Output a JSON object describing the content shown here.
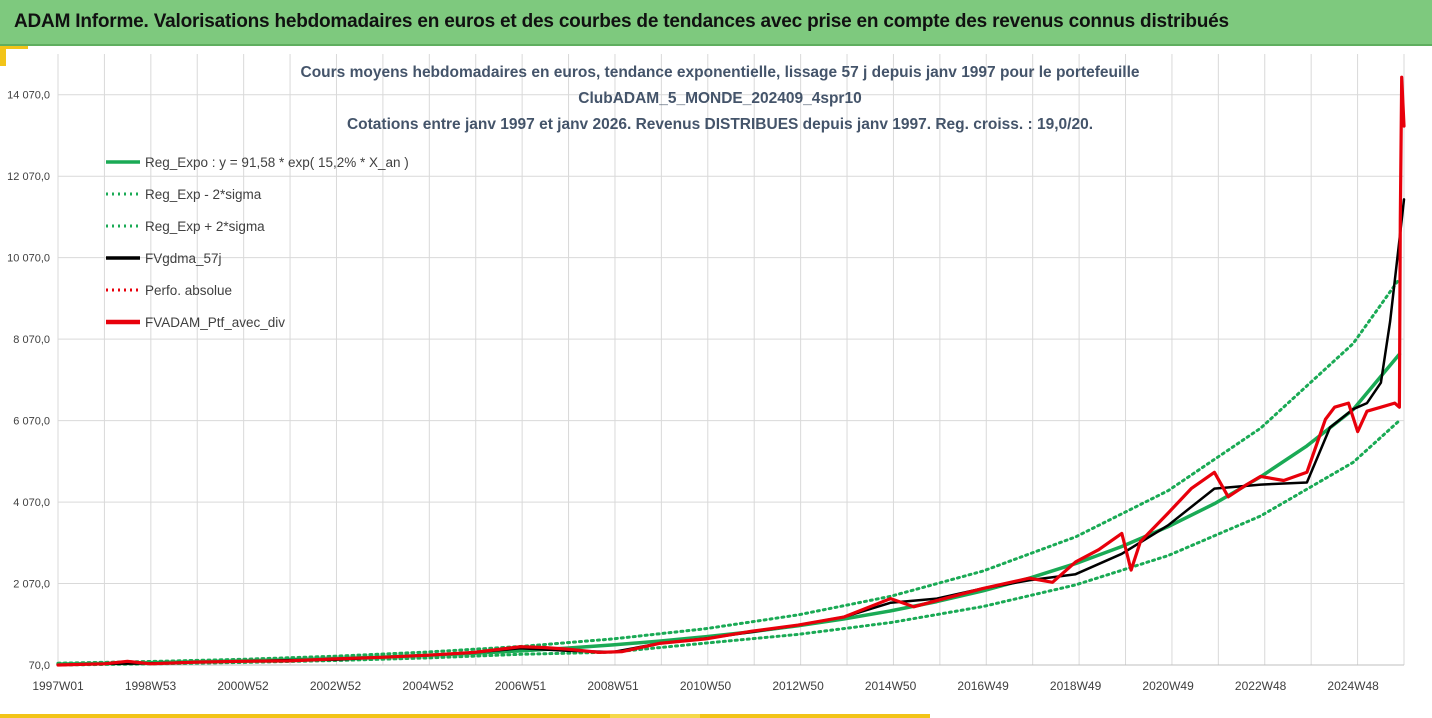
{
  "header": {
    "title": "ADAM Informe. Valorisations hebdomadaires en euros et des courbes de tendances avec prise en compte des revenus connus distribués"
  },
  "colors": {
    "header_bg": "#7ec97e",
    "trend": "#1aaa55",
    "sma": "#000000",
    "perf": "#e8000b",
    "accent": "#f2c418",
    "grid": "#d9d9d9"
  },
  "chart_data": {
    "type": "line",
    "title": [
      "Cours moyens hebdomadaires  en euros, tendance exponentielle, lissage 57 j depuis janv 1997 pour le portefeuille",
      "ClubADAM_5_MONDE_202409_4spr10",
      "Cotations entre janv 1997 et janv 2026. Revenus DISTRIBUES depuis janv 1997. Reg. croiss. : 19,0/20."
    ],
    "xlabel": "",
    "ylabel": "",
    "xlim": [
      1997.0,
      2026.1
    ],
    "ylim": [
      70,
      15070
    ],
    "yticks": [
      70,
      2070,
      4070,
      6070,
      8070,
      10070,
      12070,
      14070
    ],
    "ytick_labels": [
      "70,0",
      "2 070,0",
      "4 070,0",
      "6 070,0",
      "8 070,0",
      "10 070,0",
      "12 070,0",
      "14 070,0"
    ],
    "xtick_labels": [
      "1997W01",
      "1998W53",
      "2000W52",
      "2002W52",
      "2004W52",
      "2006W51",
      "2008W51",
      "2010W50",
      "2012W50",
      "2014W50",
      "2016W49",
      "2018W49",
      "2020W49",
      "2022W48",
      "2024W48"
    ],
    "xtick_years": [
      1997.0,
      1999.0,
      2001.0,
      2003.0,
      2005.0,
      2007.0,
      2009.0,
      2011.0,
      2013.0,
      2015.0,
      2017.0,
      2019.0,
      2021.0,
      2023.0,
      2025.0
    ],
    "legend": [
      {
        "label": "Reg_Expo : y = 91,58 * exp( 15,2% *  X_an )",
        "style": "solid-green"
      },
      {
        "label": "Reg_Exp - 2*sigma",
        "style": "dotted-green"
      },
      {
        "label": "Reg_Exp + 2*sigma",
        "style": "dotted-green"
      },
      {
        "label": "FVgdma_57j",
        "style": "solid-black"
      },
      {
        "label": "Perfo. absolue",
        "style": "dotted-red"
      },
      {
        "label": "FVADAM_Ptf_avec_div",
        "style": "solid-red-thick"
      }
    ],
    "series": [
      {
        "name": "Reg_Expo",
        "x": [
          1997,
          1998,
          1999,
          2000,
          2001,
          2002,
          2003,
          2004,
          2005,
          2006,
          2007,
          2008,
          2009,
          2010,
          2011,
          2012,
          2013,
          2014,
          2015,
          2016,
          2017,
          2018,
          2019,
          2020,
          2021,
          2022,
          2023,
          2024,
          2025,
          2026
        ],
        "y": [
          92,
          107,
          124,
          145,
          168,
          196,
          228,
          265,
          308,
          358,
          417,
          485,
          564,
          656,
          764,
          888,
          1033,
          1202,
          1398,
          1627,
          1892,
          2200,
          2560,
          2980,
          3465,
          4030,
          4690,
          5450,
          6340,
          7700
        ]
      },
      {
        "name": "Reg_Exp - 2*sigma",
        "x": [
          1997,
          1999,
          2001,
          2003,
          2005,
          2007,
          2009,
          2011,
          2013,
          2015,
          2017,
          2019,
          2021,
          2023,
          2025,
          2026
        ],
        "y": [
          70,
          98,
          133,
          181,
          245,
          333,
          386,
          608,
          822,
          1112,
          1505,
          2036,
          2755,
          3728,
          5044,
          6070
        ]
      },
      {
        "name": "Reg_Exp + 2*sigma",
        "x": [
          1997,
          1999,
          2001,
          2003,
          2005,
          2007,
          2009,
          2011,
          2013,
          2015,
          2017,
          2019,
          2021,
          2023,
          2025,
          2026
        ],
        "y": [
          115,
          156,
          211,
          286,
          388,
          525,
          710,
          960,
          1299,
          1757,
          2378,
          3216,
          4350,
          5884,
          7960,
          9550
        ]
      },
      {
        "name": "FVgdma_57j",
        "x": [
          1997,
          1998,
          1999,
          2000,
          2001,
          2002,
          2003,
          2004,
          2005,
          2006,
          2007,
          2008,
          2009,
          2010,
          2011,
          2012,
          2013,
          2014,
          2015,
          2016,
          2017,
          2018,
          2019,
          2020,
          2021,
          2022,
          2023,
          2024,
          2024.5,
          2025,
          2025.3,
          2025.6,
          2025.8,
          2026.0,
          2026.1
        ],
        "y": [
          70,
          100,
          110,
          140,
          160,
          190,
          200,
          260,
          310,
          380,
          480,
          420,
          390,
          600,
          720,
          880,
          1050,
          1250,
          1600,
          1700,
          1950,
          2150,
          2300,
          2800,
          3500,
          4400,
          4500,
          4550,
          5900,
          6350,
          6500,
          7000,
          8500,
          10500,
          11500
        ]
      },
      {
        "name": "FVADAM_Ptf_avec_div",
        "x": [
          1997,
          1998,
          1998.5,
          1999,
          2000,
          2001,
          2002,
          2003,
          2004,
          2005,
          2006,
          2007,
          2007.5,
          2008,
          2008.7,
          2009.2,
          2010,
          2011,
          2012,
          2013,
          2014,
          2015,
          2015.5,
          2016,
          2017,
          2018,
          2018.5,
          2019,
          2019.5,
          2020,
          2020.2,
          2020.4,
          2021,
          2021.5,
          2022,
          2022.3,
          2022.7,
          2023,
          2023.5,
          2024,
          2024.4,
          2024.6,
          2024.9,
          2025.1,
          2025.3,
          2025.6,
          2025.9,
          2026.0,
          2026.02,
          2026.05,
          2026.1
        ],
        "y": [
          70,
          100,
          160,
          100,
          140,
          160,
          170,
          220,
          260,
          310,
          380,
          520,
          500,
          460,
          380,
          400,
          600,
          710,
          900,
          1050,
          1250,
          1700,
          1500,
          1650,
          1950,
          2200,
          2100,
          2600,
          2900,
          3300,
          2400,
          3100,
          3800,
          4400,
          4800,
          4200,
          4500,
          4700,
          4600,
          4800,
          6100,
          6400,
          6500,
          5800,
          6300,
          6400,
          6500,
          6400,
          11000,
          14500,
          13300
        ]
      }
    ]
  }
}
